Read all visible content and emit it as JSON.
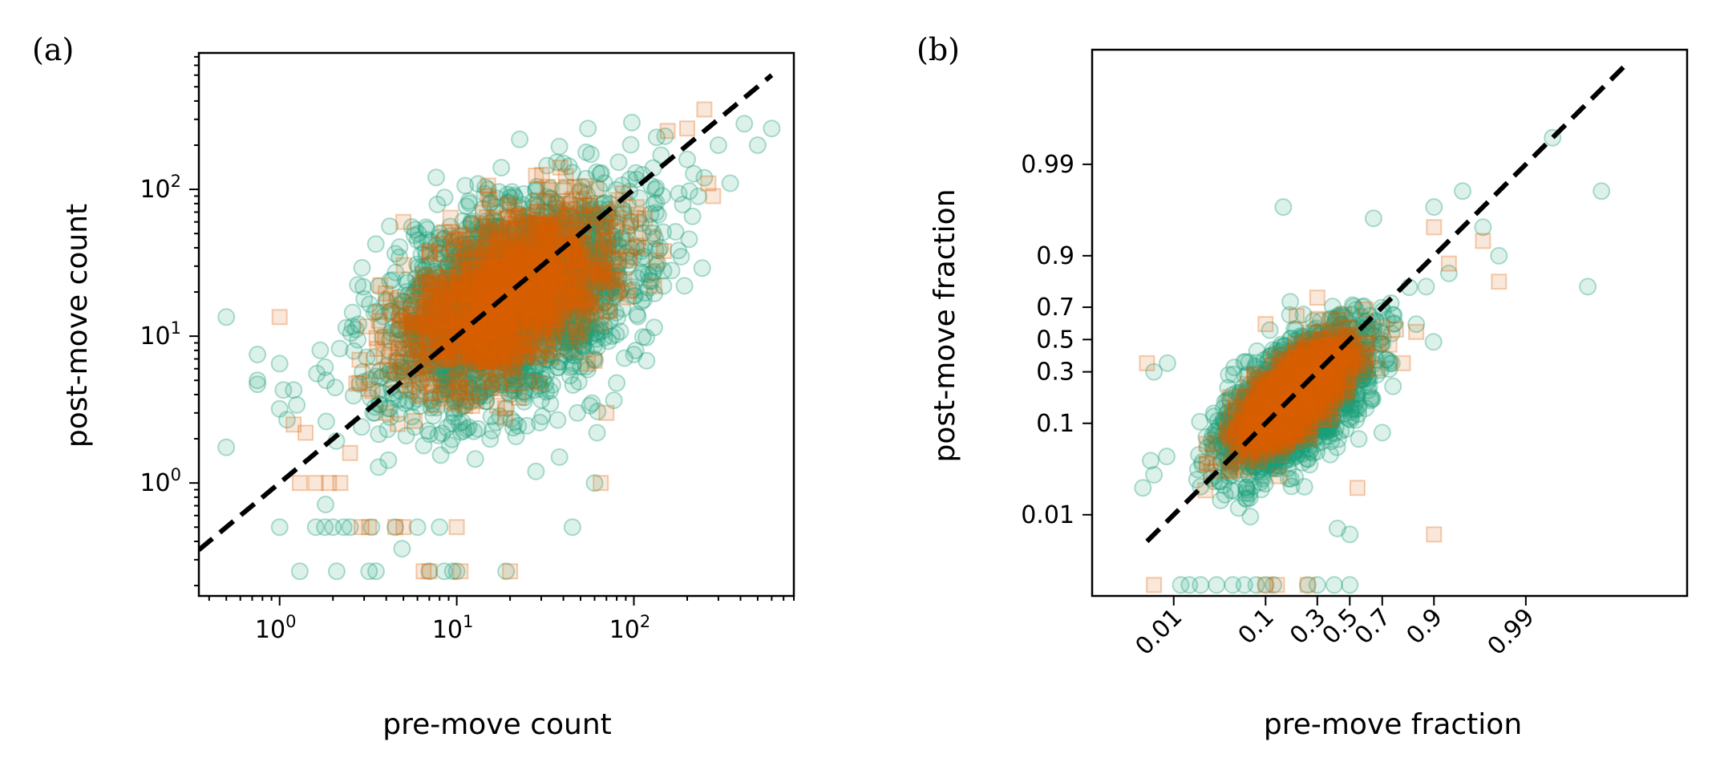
{
  "colors": {
    "series_all": "#1b9e77",
    "series_subset": "#d95f02",
    "identity_line": "#000000"
  },
  "chart_data": [
    {
      "type": "scatter",
      "panel_label": "(a)",
      "xlabel": "pre-move count",
      "ylabel": "post-move count",
      "xscale": "log",
      "yscale": "log",
      "xlim": [
        0.35,
        800
      ],
      "ylim": [
        0.17,
        850
      ],
      "x_ticks": [
        {
          "base": "10",
          "exp": "0",
          "value": 1
        },
        {
          "base": "10",
          "exp": "1",
          "value": 10
        },
        {
          "base": "10",
          "exp": "2",
          "value": 100
        }
      ],
      "y_ticks": [
        {
          "base": "10",
          "exp": "0",
          "value": 1
        },
        {
          "base": "10",
          "exp": "1",
          "value": 10
        },
        {
          "base": "10",
          "exp": "2",
          "value": 100
        }
      ],
      "identity_line": {
        "style": "dashed",
        "from": [
          0.35,
          0.35
        ],
        "to": [
          600,
          600
        ]
      },
      "series": [
        {
          "marker": "circle",
          "color": "#1b9e77",
          "alpha": 0.15,
          "cloud": {
            "center_log_x": 1.32,
            "center_log_y": 1.25,
            "spread_major": 0.42,
            "spread_minor": 0.27,
            "count": 2600
          },
          "outliers": [
            [
              0.5,
              13.5
            ],
            [
              0.5,
              1.75
            ],
            [
              0.75,
              7.5
            ],
            [
              0.75,
              5
            ],
            [
              0.75,
              4.7
            ],
            [
              1.0,
              6.5
            ],
            [
              1.05,
              4.3
            ],
            [
              1.0,
              3.2
            ],
            [
              1.2,
              4.3
            ],
            [
              1.25,
              3.4
            ],
            [
              1.1,
              2.7
            ],
            [
              1.0,
              0.5
            ],
            [
              1.6,
              0.5
            ],
            [
              1.8,
              0.5
            ],
            [
              2.0,
              0.5
            ],
            [
              2.3,
              0.5
            ],
            [
              2.5,
              0.5
            ],
            [
              3.3,
              0.5
            ],
            [
              4.5,
              0.5
            ],
            [
              6.0,
              0.5
            ],
            [
              8.0,
              0.5
            ],
            [
              1.3,
              0.25
            ],
            [
              2.1,
              0.25
            ],
            [
              3.2,
              0.25
            ],
            [
              3.5,
              0.25
            ],
            [
              7.0,
              0.25
            ],
            [
              8.5,
              0.25
            ],
            [
              9.5,
              0.25
            ],
            [
              10.0,
              0.25
            ],
            [
              19.0,
              0.25
            ],
            [
              60,
              1.0
            ],
            [
              62,
              2.2
            ],
            [
              48,
              3.0
            ],
            [
              58,
              3.5
            ],
            [
              80,
              4.8
            ],
            [
              38,
              1.5
            ],
            [
              28,
              1.2
            ],
            [
              45,
              0.5
            ],
            [
              75,
              10
            ],
            [
              100,
              7.5
            ],
            [
              600,
              260
            ],
            [
              300,
              200
            ],
            [
              200,
              160
            ],
            [
              150,
              230
            ],
            [
              420,
              280
            ],
            [
              55,
              260
            ],
            [
              45,
              130
            ],
            [
              28,
              100
            ],
            [
              8,
              50
            ],
            [
              6,
              45
            ],
            [
              15,
              100
            ],
            [
              20,
              88
            ],
            [
              350,
              110
            ],
            [
              250,
              120
            ],
            [
              130,
              80
            ],
            [
              500,
              200
            ]
          ]
        },
        {
          "marker": "square",
          "color": "#d95f02",
          "alpha": 0.15,
          "cloud": {
            "center_log_x": 1.28,
            "center_log_y": 1.28,
            "spread_major": 0.36,
            "spread_minor": 0.2,
            "count": 1500
          },
          "outliers": [
            [
              1.0,
              13.5
            ],
            [
              1.2,
              2.5
            ],
            [
              1.4,
              2.2
            ],
            [
              1.3,
              1.0
            ],
            [
              1.6,
              1.0
            ],
            [
              1.9,
              1.0
            ],
            [
              2.2,
              1.0
            ],
            [
              2.9,
              0.5
            ],
            [
              3.2,
              0.5
            ],
            [
              4.5,
              0.5
            ],
            [
              5.0,
              0.5
            ],
            [
              10,
              0.5
            ],
            [
              6.5,
              0.25
            ],
            [
              7.0,
              0.25
            ],
            [
              10.5,
              0.25
            ],
            [
              20,
              0.25
            ],
            [
              65,
              1.0
            ],
            [
              70,
              3.0
            ],
            [
              55,
              6.5
            ],
            [
              60,
              6.8
            ],
            [
              200,
              260
            ],
            [
              250,
              350
            ],
            [
              155,
              250
            ],
            [
              280,
              90
            ],
            [
              130,
              22
            ],
            [
              5,
              60
            ],
            [
              18,
              40
            ],
            [
              2.5,
              1.6
            ],
            [
              4.0,
              3.0
            ]
          ]
        }
      ]
    },
    {
      "type": "scatter",
      "panel_label": "(b)",
      "xlabel": "pre-move fraction",
      "ylabel": "post-move fraction",
      "xscale": "logit",
      "yscale": "logit",
      "xlim": [
        0.0012,
        0.99985
      ],
      "ylim": [
        0.0012,
        0.9995
      ],
      "tick_values": [
        0.01,
        0.1,
        0.3,
        0.5,
        0.7,
        0.9,
        0.99
      ],
      "x_tick_labels": [
        "0.01",
        "0.1",
        "0.3",
        "0.5",
        "0.7",
        "0.9",
        "0.99"
      ],
      "y_tick_labels": [
        "0.01",
        "0.1",
        "0.3",
        "0.5",
        "0.7",
        "0.9",
        "0.99"
      ],
      "identity_line": {
        "style": "dashed",
        "from": [
          0.005,
          0.005
        ],
        "to": [
          0.9993,
          0.9993
        ]
      },
      "series": [
        {
          "marker": "circle",
          "color": "#1b9e77",
          "alpha": 0.15,
          "cloud": {
            "center_logit_x": -1.4,
            "center_logit_y": -1.6,
            "spread_major": 1.15,
            "spread_minor": 0.55,
            "count": 2600
          },
          "outliers": [
            [
              0.0055,
              0.04
            ],
            [
              0.006,
              0.028
            ],
            [
              0.006,
              0.3
            ],
            [
              0.0085,
              0.35
            ],
            [
              0.0045,
              0.02
            ],
            [
              0.012,
              0.0016
            ],
            [
              0.015,
              0.0016
            ],
            [
              0.02,
              0.0016
            ],
            [
              0.03,
              0.0016
            ],
            [
              0.045,
              0.0016
            ],
            [
              0.06,
              0.0016
            ],
            [
              0.08,
              0.0016
            ],
            [
              0.1,
              0.0016
            ],
            [
              0.12,
              0.0016
            ],
            [
              0.25,
              0.0016
            ],
            [
              0.3,
              0.0016
            ],
            [
              0.4,
              0.0016
            ],
            [
              0.5,
              0.0016
            ],
            [
              0.42,
              0.007
            ],
            [
              0.5,
              0.006
            ],
            [
              0.9,
              0.97
            ],
            [
              0.95,
              0.98
            ],
            [
              0.97,
              0.95
            ],
            [
              0.98,
              0.9
            ],
            [
              0.995,
              0.995
            ],
            [
              0.998,
              0.8
            ],
            [
              0.9986,
              0.98
            ],
            [
              0.15,
              0.97
            ],
            [
              0.88,
              0.8
            ],
            [
              0.75,
              0.35
            ],
            [
              0.85,
              0.6
            ],
            [
              0.7,
              0.08
            ],
            [
              0.93,
              0.85
            ],
            [
              0.65,
              0.96
            ]
          ]
        },
        {
          "marker": "square",
          "color": "#d95f02",
          "alpha": 0.15,
          "cloud": {
            "center_logit_x": -1.5,
            "center_logit_y": -1.5,
            "spread_major": 0.95,
            "spread_minor": 0.38,
            "count": 1500
          },
          "outliers": [
            [
              0.005,
              0.35
            ],
            [
              0.006,
              0.0016
            ],
            [
              0.1,
              0.0016
            ],
            [
              0.13,
              0.0016
            ],
            [
              0.25,
              0.0016
            ],
            [
              0.1,
              0.6
            ],
            [
              0.2,
              0.65
            ],
            [
              0.3,
              0.75
            ],
            [
              0.9,
              0.95
            ],
            [
              0.93,
              0.88
            ],
            [
              0.97,
              0.93
            ],
            [
              0.98,
              0.82
            ],
            [
              0.85,
              0.55
            ],
            [
              0.8,
              0.35
            ],
            [
              0.9,
              0.006
            ],
            [
              0.55,
              0.02
            ]
          ]
        }
      ]
    }
  ]
}
